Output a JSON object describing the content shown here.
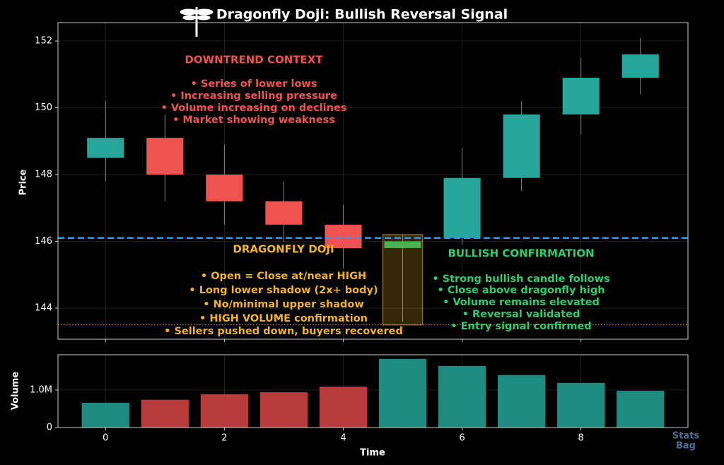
{
  "chart_data": [
    {
      "type": "candlestick",
      "title": "Dragonfly Doji: Bullish Reversal Signal",
      "ylabel": "Price",
      "x": [
        0,
        1,
        2,
        3,
        4,
        5,
        6,
        7,
        8,
        9
      ],
      "open": [
        148.5,
        149.1,
        148.0,
        147.2,
        146.5,
        145.8,
        146.1,
        147.9,
        149.8,
        150.9
      ],
      "high": [
        150.2,
        149.8,
        148.9,
        147.8,
        147.1,
        146.2,
        148.8,
        150.2,
        151.5,
        152.1
      ],
      "low": [
        147.8,
        147.2,
        146.5,
        146.0,
        145.2,
        143.6,
        145.9,
        147.5,
        149.2,
        150.4
      ],
      "close": [
        149.1,
        148.0,
        147.2,
        146.5,
        145.8,
        146.0,
        147.9,
        149.8,
        150.9,
        151.6
      ],
      "colors": [
        "#26a69a",
        "#ef5350",
        "#ef5350",
        "#ef5350",
        "#ef5350",
        "#4caf50",
        "#26a69a",
        "#26a69a",
        "#26a69a",
        "#26a69a"
      ],
      "xlim": [
        -0.8,
        9.8
      ],
      "ylim": [
        143.07,
        152.55
      ],
      "yticks": [
        144,
        146,
        148,
        150,
        152
      ],
      "grid": true,
      "reference_lines": [
        {
          "value": 146.1,
          "color": "#3a9ad9",
          "style": "dashed"
        },
        {
          "value": 143.5,
          "color": "#f0a020",
          "style": "dotted"
        }
      ],
      "annotations": [
        {
          "title": "DOWNTREND CONTEXT",
          "color": "#ef5350",
          "lines": [
            "• Series of lower lows",
            "• Increasing selling pressure",
            "• Volume increasing on declines",
            "• Market showing weakness"
          ]
        },
        {
          "title": "DRAGONFLY DOJI",
          "color": "#f0b429",
          "lines": [
            "• Open = Close at/near HIGH",
            "• Long lower shadow (2x+ body)",
            "• No/minimal upper shadow",
            "• HIGH VOLUME confirmation",
            "• Sellers pushed down, buyers recovered"
          ]
        },
        {
          "title": "BULLISH CONFIRMATION",
          "color": "#2ecc71",
          "lines": [
            "• Strong bullish candle follows",
            "• Close above dragonfly high",
            "• Volume remains elevated",
            "• Reversal validated",
            "• Entry signal confirmed"
          ]
        }
      ]
    },
    {
      "type": "bar",
      "xlabel": "Time",
      "ylabel": "Volume",
      "x": [
        0,
        1,
        2,
        3,
        4,
        5,
        6,
        7,
        8,
        9
      ],
      "values": [
        660000,
        740000,
        890000,
        940000,
        1090000,
        1830000,
        1640000,
        1400000,
        1190000,
        980000
      ],
      "colors": [
        "#1f8a80",
        "#b83c3c",
        "#b83c3c",
        "#b83c3c",
        "#b83c3c",
        "#1f8a80",
        "#1f8a80",
        "#1f8a80",
        "#1f8a80",
        "#1f8a80"
      ],
      "xlim": [
        -0.8,
        9.8
      ],
      "ylim": [
        0,
        1940000
      ],
      "yticks": [
        0,
        {
          "value": 1000000,
          "label": "1.0M"
        }
      ],
      "xticks": [
        0,
        2,
        4,
        6,
        8
      ],
      "grid": true
    },
    {
      "watermark": [
        "Stats",
        "Bag"
      ]
    }
  ]
}
